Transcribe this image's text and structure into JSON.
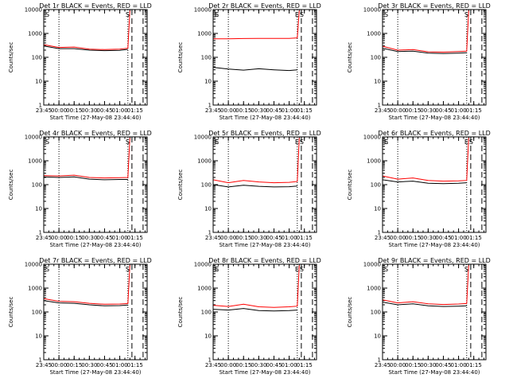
{
  "figure": {
    "background": "#ffffff",
    "colors": {
      "events": "#000000",
      "lld": "#ff0000",
      "axes": "#000000"
    }
  },
  "chart_data": [
    {
      "type": "line",
      "panel": 1,
      "title": "Det 1r BLACK = Events, RED = LLD",
      "xlabel": "Start Time (27-May-08 23:44:40)",
      "ylabel": "Counts/sec",
      "yscale": "log",
      "ylim": [
        1,
        10000
      ],
      "yticks": [
        "1",
        "10",
        "100",
        "1000",
        "10000"
      ],
      "xlim": [
        "23:45",
        "01:27"
      ],
      "xticks": [
        "23:45",
        "00:00",
        "00:15",
        "00:30",
        "00:45",
        "01:00",
        "01:15"
      ],
      "grid": false,
      "markers": [
        "S"
      ],
      "vlines": [
        {
          "time": "00:00",
          "style": "dotted"
        },
        {
          "time": "01:08",
          "style": "dotted"
        },
        {
          "time": "01:12",
          "style": "dashed"
        },
        {
          "time": "01:23",
          "style": "dashed"
        }
      ],
      "series": [
        {
          "color": "#000000",
          "x": [
            "23:45",
            "00:00",
            "00:15",
            "00:30",
            "00:45",
            "01:00",
            "01:08"
          ],
          "values": [
            300,
            230,
            230,
            200,
            190,
            195,
            215
          ]
        },
        {
          "color": "#ff0000",
          "x": [
            "23:45",
            "00:00",
            "00:15",
            "00:30",
            "00:45",
            "01:00",
            "01:08",
            "01:10"
          ],
          "values": [
            340,
            260,
            270,
            220,
            210,
            220,
            240,
            9000
          ]
        }
      ]
    },
    {
      "type": "line",
      "panel": 2,
      "title": "Det 2r BLACK = Events, RED = LLD",
      "xlabel": "Start Time (27-May-08 23:44:40)",
      "ylabel": "Counts/sec",
      "yscale": "log",
      "ylim": [
        1,
        10000
      ],
      "yticks": [
        "1",
        "10",
        "100",
        "1000",
        "10000"
      ],
      "xlim": [
        "23:45",
        "01:27"
      ],
      "xticks": [
        "23:45",
        "00:00",
        "00:15",
        "00:30",
        "00:45",
        "01:00",
        "01:15"
      ],
      "grid": false,
      "markers": [
        "E",
        "S"
      ],
      "vlines": [
        {
          "time": "00:00",
          "style": "dotted"
        },
        {
          "time": "01:08",
          "style": "dotted"
        },
        {
          "time": "01:12",
          "style": "dashed"
        },
        {
          "time": "01:23",
          "style": "dashed"
        }
      ],
      "series": [
        {
          "color": "#000000",
          "x": [
            "23:45",
            "00:00",
            "00:15",
            "00:30",
            "00:45",
            "01:00",
            "01:08"
          ],
          "values": [
            38,
            32,
            29,
            33,
            30,
            28,
            30
          ]
        },
        {
          "color": "#ff0000",
          "x": [
            "23:45",
            "00:00",
            "00:15",
            "00:30",
            "00:45",
            "01:00",
            "01:08",
            "01:10"
          ],
          "values": [
            600,
            600,
            610,
            620,
            620,
            620,
            650,
            9000
          ]
        }
      ]
    },
    {
      "type": "line",
      "panel": 3,
      "title": "Det 3r BLACK = Events, RED = LLD",
      "xlabel": "Start Time (27-May-08 23:44:40)",
      "ylabel": "Counts/sec",
      "yscale": "log",
      "ylim": [
        1,
        10000
      ],
      "yticks": [
        "1",
        "10",
        "100",
        "1000",
        "10000"
      ],
      "xlim": [
        "23:45",
        "01:27"
      ],
      "xticks": [
        "23:45",
        "00:00",
        "00:15",
        "00:30",
        "00:45",
        "01:00",
        "01:15"
      ],
      "grid": false,
      "markers": [
        "S"
      ],
      "vlines": [
        {
          "time": "00:00",
          "style": "dotted"
        },
        {
          "time": "01:08",
          "style": "dotted"
        },
        {
          "time": "01:12",
          "style": "dashed"
        },
        {
          "time": "01:23",
          "style": "dashed"
        }
      ],
      "series": [
        {
          "color": "#000000",
          "x": [
            "23:45",
            "00:00",
            "00:15",
            "00:30",
            "00:45",
            "01:00",
            "01:08"
          ],
          "values": [
            240,
            175,
            180,
            150,
            145,
            150,
            155
          ]
        },
        {
          "color": "#ff0000",
          "x": [
            "23:45",
            "00:00",
            "00:15",
            "00:30",
            "00:45",
            "01:00",
            "01:08",
            "01:10"
          ],
          "values": [
            290,
            200,
            210,
            170,
            165,
            175,
            180,
            9000
          ]
        }
      ]
    },
    {
      "type": "line",
      "panel": 4,
      "title": "Det 4r BLACK = Events, RED = LLD",
      "xlabel": "Start Time (27-May-08 23:44:40)",
      "ylabel": "Counts/sec",
      "yscale": "log",
      "ylim": [
        1,
        10000
      ],
      "yticks": [
        "1",
        "10",
        "100",
        "1000",
        "10000"
      ],
      "xlim": [
        "23:45",
        "01:27"
      ],
      "xticks": [
        "23:45",
        "00:00",
        "00:15",
        "00:30",
        "00:45",
        "01:00",
        "01:15"
      ],
      "grid": false,
      "markers": [
        "S"
      ],
      "vlines": [
        {
          "time": "00:00",
          "style": "dotted"
        },
        {
          "time": "01:08",
          "style": "dotted"
        },
        {
          "time": "01:12",
          "style": "dashed"
        },
        {
          "time": "01:23",
          "style": "dashed"
        }
      ],
      "series": [
        {
          "color": "#000000",
          "x": [
            "23:45",
            "00:00",
            "00:15",
            "00:30",
            "00:45",
            "01:00",
            "01:08"
          ],
          "values": [
            210,
            200,
            210,
            170,
            160,
            165,
            165
          ]
        },
        {
          "color": "#ff0000",
          "x": [
            "23:45",
            "00:00",
            "00:15",
            "00:30",
            "00:45",
            "01:00",
            "01:08",
            "01:10"
          ],
          "values": [
            240,
            230,
            250,
            200,
            190,
            195,
            200,
            9000
          ]
        }
      ]
    },
    {
      "type": "line",
      "panel": 5,
      "title": "Det 5r BLACK = Events, RED = LLD",
      "xlabel": "Start Time (27-May-08 23:44:40)",
      "ylabel": "Counts/sec",
      "yscale": "log",
      "ylim": [
        1,
        10000
      ],
      "yticks": [
        "1",
        "10",
        "100",
        "1000",
        "10000"
      ],
      "xlim": [
        "23:45",
        "01:27"
      ],
      "xticks": [
        "23:45",
        "00:00",
        "00:15",
        "00:30",
        "00:45",
        "01:00",
        "01:15"
      ],
      "grid": false,
      "markers": [
        "E",
        "S"
      ],
      "vlines": [
        {
          "time": "00:00",
          "style": "dotted"
        },
        {
          "time": "01:08",
          "style": "dotted"
        },
        {
          "time": "01:12",
          "style": "dashed"
        },
        {
          "time": "01:23",
          "style": "dashed"
        }
      ],
      "series": [
        {
          "color": "#000000",
          "x": [
            "23:45",
            "00:00",
            "00:15",
            "00:30",
            "00:45",
            "01:00",
            "01:08"
          ],
          "values": [
            100,
            80,
            95,
            85,
            80,
            82,
            88
          ]
        },
        {
          "color": "#ff0000",
          "x": [
            "23:45",
            "00:00",
            "00:15",
            "00:30",
            "00:45",
            "01:00",
            "01:08",
            "01:10"
          ],
          "values": [
            160,
            120,
            150,
            130,
            120,
            125,
            135,
            9000
          ]
        }
      ]
    },
    {
      "type": "line",
      "panel": 6,
      "title": "Det 6r BLACK = Events, RED = LLD",
      "xlabel": "Start Time (27-May-08 23:44:40)",
      "ylabel": "Counts/sec",
      "yscale": "log",
      "ylim": [
        1,
        10000
      ],
      "yticks": [
        "1",
        "10",
        "100",
        "1000",
        "10000"
      ],
      "xlim": [
        "23:45",
        "01:27"
      ],
      "xticks": [
        "23:45",
        "00:00",
        "00:15",
        "00:30",
        "00:45",
        "01:00",
        "01:15"
      ],
      "grid": false,
      "markers": [
        "E",
        "S"
      ],
      "vlines": [
        {
          "time": "00:00",
          "style": "dotted"
        },
        {
          "time": "01:08",
          "style": "dotted"
        },
        {
          "time": "01:12",
          "style": "dashed"
        },
        {
          "time": "01:23",
          "style": "dashed"
        }
      ],
      "series": [
        {
          "color": "#000000",
          "x": [
            "23:45",
            "00:00",
            "00:15",
            "00:30",
            "00:45",
            "01:00",
            "01:08"
          ],
          "values": [
            160,
            130,
            140,
            115,
            110,
            115,
            120
          ]
        },
        {
          "color": "#ff0000",
          "x": [
            "23:45",
            "00:00",
            "00:15",
            "00:30",
            "00:45",
            "01:00",
            "01:08",
            "01:10"
          ],
          "values": [
            230,
            170,
            190,
            150,
            140,
            145,
            150,
            9000
          ]
        }
      ]
    },
    {
      "type": "line",
      "panel": 7,
      "title": "Det 7r BLACK = Events, RED = LLD",
      "xlabel": "Start Time (27-May-08 23:44:40)",
      "ylabel": "Counts/sec",
      "yscale": "log",
      "ylim": [
        1,
        10000
      ],
      "yticks": [
        "1",
        "10",
        "100",
        "1000",
        "10000"
      ],
      "xlim": [
        "23:45",
        "01:27"
      ],
      "xticks": [
        "23:45",
        "00:00",
        "00:15",
        "00:30",
        "00:45",
        "01:00",
        "01:15"
      ],
      "grid": false,
      "markers": [
        "S"
      ],
      "vlines": [
        {
          "time": "00:00",
          "style": "dotted"
        },
        {
          "time": "01:08",
          "style": "dotted"
        },
        {
          "time": "01:12",
          "style": "dashed"
        },
        {
          "time": "01:23",
          "style": "dashed"
        }
      ],
      "series": [
        {
          "color": "#000000",
          "x": [
            "23:45",
            "00:00",
            "00:15",
            "00:30",
            "00:45",
            "01:00",
            "01:08"
          ],
          "values": [
            300,
            240,
            230,
            200,
            180,
            185,
            195
          ]
        },
        {
          "color": "#ff0000",
          "x": [
            "23:45",
            "00:00",
            "00:15",
            "00:30",
            "00:45",
            "01:00",
            "01:08",
            "01:10"
          ],
          "values": [
            360,
            280,
            270,
            230,
            210,
            215,
            225,
            9000
          ]
        }
      ]
    },
    {
      "type": "line",
      "panel": 8,
      "title": "Det 8r BLACK = Events, RED = LLD",
      "xlabel": "Start Time (27-May-08 23:44:40)",
      "ylabel": "Counts/sec",
      "yscale": "log",
      "ylim": [
        1,
        10000
      ],
      "yticks": [
        "1",
        "10",
        "100",
        "1000",
        "10000"
      ],
      "xlim": [
        "23:45",
        "01:27"
      ],
      "xticks": [
        "23:45",
        "00:00",
        "00:15",
        "00:30",
        "00:45",
        "01:00",
        "01:15"
      ],
      "grid": false,
      "markers": [
        "E",
        "S"
      ],
      "vlines": [
        {
          "time": "00:00",
          "style": "dotted"
        },
        {
          "time": "01:08",
          "style": "dotted"
        },
        {
          "time": "01:12",
          "style": "dashed"
        },
        {
          "time": "01:23",
          "style": "dashed"
        }
      ],
      "series": [
        {
          "color": "#000000",
          "x": [
            "23:45",
            "00:00",
            "00:15",
            "00:30",
            "00:45",
            "01:00",
            "01:08"
          ],
          "values": [
            130,
            120,
            140,
            115,
            110,
            115,
            120
          ]
        },
        {
          "color": "#ff0000",
          "x": [
            "23:45",
            "00:00",
            "00:15",
            "00:30",
            "00:45",
            "01:00",
            "01:08",
            "01:10"
          ],
          "values": [
            190,
            170,
            210,
            165,
            155,
            165,
            175,
            9000
          ]
        }
      ]
    },
    {
      "type": "line",
      "panel": 9,
      "title": "Det 9r BLACK = Events, RED = LLD",
      "xlabel": "Start Time (27-May-08 23:44:40)",
      "ylabel": "Counts/sec",
      "yscale": "log",
      "ylim": [
        1,
        10000
      ],
      "yticks": [
        "1",
        "10",
        "100",
        "1000",
        "10000"
      ],
      "xlim": [
        "23:45",
        "01:27"
      ],
      "xticks": [
        "23:45",
        "00:00",
        "00:15",
        "00:30",
        "00:45",
        "01:00",
        "01:15"
      ],
      "grid": false,
      "markers": [
        "S"
      ],
      "vlines": [
        {
          "time": "00:00",
          "style": "dotted"
        },
        {
          "time": "01:08",
          "style": "dotted"
        },
        {
          "time": "01:12",
          "style": "dashed"
        },
        {
          "time": "01:23",
          "style": "dashed"
        }
      ],
      "series": [
        {
          "color": "#000000",
          "x": [
            "23:45",
            "00:00",
            "00:15",
            "00:30",
            "00:45",
            "01:00",
            "01:08"
          ],
          "values": [
            260,
            200,
            220,
            180,
            170,
            175,
            180
          ]
        },
        {
          "color": "#ff0000",
          "x": [
            "23:45",
            "00:00",
            "00:15",
            "00:30",
            "00:45",
            "01:00",
            "01:08",
            "01:10"
          ],
          "values": [
            320,
            240,
            270,
            220,
            205,
            215,
            225,
            9000
          ]
        }
      ]
    }
  ]
}
